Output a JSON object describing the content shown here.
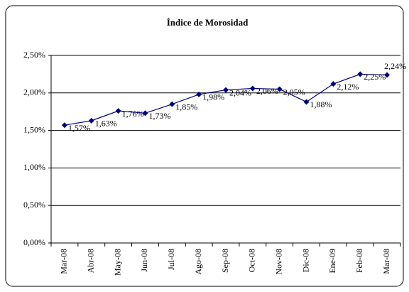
{
  "chart_data": {
    "type": "line",
    "title": "Índice de Morosidad",
    "categories": [
      "Mar-08",
      "Abr-08",
      "May-08",
      "Jun-08",
      "Jul-08",
      "Ago-08",
      "Sep-08",
      "Oct-08",
      "Nov-08",
      "Dic-08",
      "Ene-09",
      "Feb-08",
      "Mar-08"
    ],
    "series": [
      {
        "color": "#000080",
        "values": [
          1.57,
          1.63,
          1.76,
          1.73,
          1.85,
          1.98,
          2.04,
          2.06,
          2.05,
          1.88,
          2.12,
          2.25,
          2.24
        ],
        "value_labels": [
          "1,57%",
          "1,63%",
          "1,76%",
          "1,73%",
          "1,85%",
          "1,98%",
          "2,04%",
          "2,06%",
          "2,05%",
          "1,88%",
          "2,12%",
          "2,25%",
          "2,24%"
        ]
      }
    ],
    "ylim": [
      0,
      2.5
    ],
    "yticks": [
      {
        "value": 0,
        "label": "0,00%"
      },
      {
        "value": 0.5,
        "label": "0,50%"
      },
      {
        "value": 1,
        "label": "1,00%"
      },
      {
        "value": 1.5,
        "label": "1,50%"
      },
      {
        "value": 2,
        "label": "2,00%"
      },
      {
        "value": 2.5,
        "label": "2,50%"
      }
    ],
    "grid": true
  }
}
